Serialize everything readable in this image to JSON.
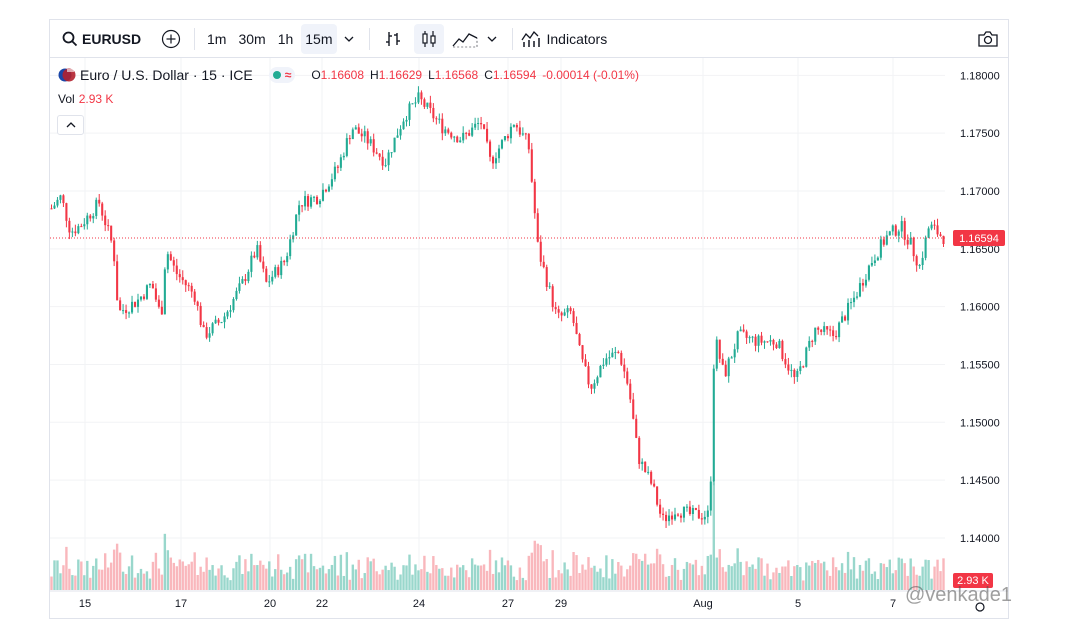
{
  "toolbar": {
    "symbol": "EURUSD",
    "intervals": [
      "1m",
      "30m",
      "1h",
      "15m"
    ],
    "active_interval": "15m",
    "indicators_label": "Indicators"
  },
  "legend": {
    "title": "Euro / U.S. Dollar · 15 · ICE",
    "open_key": "O",
    "open": "1.16608",
    "high_key": "H",
    "high": "1.16629",
    "low_key": "L",
    "low": "1.16568",
    "close_key": "C",
    "close": "1.16594",
    "change": "-0.00014 (-0.01%)",
    "vol_label": "Vol",
    "vol_value": "2.93 K"
  },
  "colors": {
    "up": "#22ab94",
    "down": "#f23645",
    "vol_up": "#7fcdbf",
    "vol_down": "#f7a5ab",
    "grid": "#f2f3f5"
  },
  "chart_data": {
    "type": "candlestick",
    "price_ticks": [
      "1.18000",
      "1.17500",
      "1.17000",
      "1.16500",
      "1.16000",
      "1.15500",
      "1.15000",
      "1.14500",
      "1.14000"
    ],
    "ylim": [
      1.1355,
      1.1815
    ],
    "last_price": "1.16594",
    "last_volume": "2.93 K",
    "time_labels": [
      "15",
      "17",
      "20",
      "22",
      "24",
      "27",
      "29",
      "Aug",
      "5",
      "7"
    ],
    "price_path": [
      [
        0,
        1.1685
      ],
      [
        0.01,
        1.1695
      ],
      [
        0.02,
        1.1665
      ],
      [
        0.03,
        1.167
      ],
      [
        0.05,
        1.169
      ],
      [
        0.065,
        1.165
      ],
      [
        0.07,
        1.1595
      ],
      [
        0.09,
        1.1605
      ],
      [
        0.105,
        1.162
      ],
      [
        0.115,
        1.159
      ],
      [
        0.12,
        1.165
      ],
      [
        0.13,
        1.163
      ],
      [
        0.15,
        1.161
      ],
      [
        0.16,
        1.1575
      ],
      [
        0.18,
        1.159
      ],
      [
        0.2,
        1.162
      ],
      [
        0.215,
        1.165
      ],
      [
        0.225,
        1.162
      ],
      [
        0.245,
        1.164
      ],
      [
        0.26,
        1.169
      ],
      [
        0.28,
        1.1695
      ],
      [
        0.3,
        1.172
      ],
      [
        0.315,
        1.1755
      ],
      [
        0.33,
        1.1745
      ],
      [
        0.35,
        1.1725
      ],
      [
        0.37,
        1.1765
      ],
      [
        0.385,
        1.178
      ],
      [
        0.395,
        1.177
      ],
      [
        0.41,
        1.1755
      ],
      [
        0.43,
        1.1745
      ],
      [
        0.45,
        1.176
      ],
      [
        0.46,
        1.1725
      ],
      [
        0.475,
        1.1745
      ],
      [
        0.485,
        1.176
      ],
      [
        0.5,
        1.174
      ],
      [
        0.51,
        1.165
      ],
      [
        0.52,
        1.162
      ],
      [
        0.53,
        1.159
      ],
      [
        0.545,
        1.1595
      ],
      [
        0.555,
        1.1555
      ],
      [
        0.565,
        1.153
      ],
      [
        0.58,
        1.1555
      ],
      [
        0.595,
        1.156
      ],
      [
        0.605,
        1.153
      ],
      [
        0.615,
        1.147
      ],
      [
        0.63,
        1.1445
      ],
      [
        0.64,
        1.1415
      ],
      [
        0.655,
        1.1425
      ],
      [
        0.67,
        1.142
      ],
      [
        0.68,
        1.142
      ],
      [
        0.69,
        1.142
      ],
      [
        0.695,
        1.1575
      ],
      [
        0.705,
        1.154
      ],
      [
        0.72,
        1.1575
      ],
      [
        0.74,
        1.157
      ],
      [
        0.76,
        1.157
      ],
      [
        0.78,
        1.1535
      ],
      [
        0.8,
        1.158
      ],
      [
        0.82,
        1.1575
      ],
      [
        0.84,
        1.1605
      ],
      [
        0.86,
        1.164
      ],
      [
        0.875,
        1.166
      ],
      [
        0.89,
        1.167
      ],
      [
        0.9,
        1.1655
      ],
      [
        0.91,
        1.1635
      ],
      [
        0.92,
        1.167
      ],
      [
        0.935,
        1.166
      ]
    ]
  },
  "watermark": "@venkade1"
}
